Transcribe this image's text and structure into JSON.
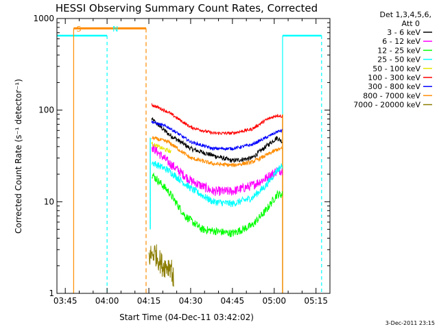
{
  "chart_data": {
    "type": "line",
    "title": "HESSI Observing Summary Count Rates, Corrected",
    "xlabel": "Start Time (04-Dec-11 03:42:02)",
    "ylabel": "Corrected Count Rate (s⁻¹ detector⁻¹)",
    "yscale": "log",
    "ylim": [
      1,
      1000
    ],
    "xlim_minutes": [
      222,
      320
    ],
    "xticks": [
      {
        "label": "03:45",
        "minute": 225
      },
      {
        "label": "04:00",
        "minute": 240
      },
      {
        "label": "04:15",
        "minute": 255
      },
      {
        "label": "04:30",
        "minute": 270
      },
      {
        "label": "04:45",
        "minute": 285
      },
      {
        "label": "05:00",
        "minute": 300
      },
      {
        "label": "05:15",
        "minute": 315
      }
    ],
    "yticks": [
      {
        "label": "1",
        "value": 1
      },
      {
        "label": "10",
        "value": 10
      },
      {
        "label": "100",
        "value": 100
      },
      {
        "label": "1000",
        "value": 1000
      }
    ],
    "legend": {
      "placement": "right",
      "header": [
        "Det 1,3,4,5,6,",
        "Att 0"
      ],
      "entries": [
        {
          "label": "3 - 6 keV",
          "color": "#000000"
        },
        {
          "label": "6 - 12 keV",
          "color": "#ff00ff"
        },
        {
          "label": "12 - 25 keV",
          "color": "#00ff00"
        },
        {
          "label": "25 - 50 keV",
          "color": "#00ffff"
        },
        {
          "label": "50 - 100 keV",
          "color": "#e6e600"
        },
        {
          "label": "100 - 300 keV",
          "color": "#ff0000"
        },
        {
          "label": "300 - 800 keV",
          "color": "#0000ff"
        },
        {
          "label": "800 - 7000 keV",
          "color": "#ff8c00"
        },
        {
          "label": "7000 - 20000 keV",
          "color": "#8b7d00"
        }
      ]
    },
    "series": [
      {
        "name": "3 - 6 keV",
        "color": "#000000",
        "noise": 0.06,
        "points": [
          [
            256,
            80
          ],
          [
            262,
            55
          ],
          [
            270,
            38
          ],
          [
            278,
            32
          ],
          [
            285,
            28
          ],
          [
            292,
            30
          ],
          [
            297,
            40
          ],
          [
            301,
            50
          ],
          [
            303,
            45
          ]
        ]
      },
      {
        "name": "6 - 12 keV",
        "color": "#ff00ff",
        "noise": 0.12,
        "points": [
          [
            256,
            40
          ],
          [
            262,
            27
          ],
          [
            270,
            17
          ],
          [
            278,
            13
          ],
          [
            285,
            13
          ],
          [
            292,
            15
          ],
          [
            297,
            18
          ],
          [
            301,
            22
          ],
          [
            303,
            22
          ]
        ]
      },
      {
        "name": "12 - 25 keV",
        "color": "#00ff00",
        "noise": 0.1,
        "points": [
          [
            256,
            20
          ],
          [
            262,
            13
          ],
          [
            268,
            7
          ],
          [
            274,
            5
          ],
          [
            285,
            4.5
          ],
          [
            292,
            5.5
          ],
          [
            297,
            8
          ],
          [
            301,
            12
          ],
          [
            303,
            12
          ]
        ]
      },
      {
        "name": "25 - 50 keV",
        "color": "#00ffff",
        "noise": 0.09,
        "points": [
          [
            256,
            27
          ],
          [
            262,
            22
          ],
          [
            270,
            14
          ],
          [
            278,
            10
          ],
          [
            285,
            9.5
          ],
          [
            292,
            11
          ],
          [
            297,
            15
          ],
          [
            301,
            22
          ],
          [
            303,
            25
          ]
        ]
      },
      {
        "name": "50 - 100 keV",
        "color": "#e6e600",
        "noise": 0.05,
        "points": [
          [
            256,
            43
          ],
          [
            260,
            38
          ],
          [
            263,
            35
          ]
        ]
      },
      {
        "name": "100 - 300 keV",
        "color": "#ff0000",
        "noise": 0.04,
        "points": [
          [
            256,
            115
          ],
          [
            262,
            95
          ],
          [
            270,
            65
          ],
          [
            278,
            56
          ],
          [
            285,
            56
          ],
          [
            292,
            62
          ],
          [
            297,
            78
          ],
          [
            301,
            88
          ],
          [
            303,
            85
          ]
        ]
      },
      {
        "name": "300 - 800 keV",
        "color": "#0000ff",
        "noise": 0.04,
        "points": [
          [
            256,
            75
          ],
          [
            262,
            65
          ],
          [
            270,
            45
          ],
          [
            278,
            38
          ],
          [
            285,
            38
          ],
          [
            292,
            42
          ],
          [
            297,
            50
          ],
          [
            301,
            58
          ],
          [
            303,
            60
          ]
        ]
      },
      {
        "name": "800 - 7000 keV",
        "color": "#ff8c00",
        "noise": 0.05,
        "points": [
          [
            256,
            50
          ],
          [
            262,
            45
          ],
          [
            270,
            30
          ],
          [
            278,
            26
          ],
          [
            285,
            25
          ],
          [
            292,
            27
          ],
          [
            297,
            32
          ],
          [
            301,
            37
          ],
          [
            303,
            38
          ]
        ]
      },
      {
        "name": "7000 - 20000 keV",
        "color": "#8b7d00",
        "noise": 0.3,
        "points": [
          [
            255,
            2.5
          ],
          [
            257,
            2.8
          ],
          [
            260,
            2
          ],
          [
            263,
            2
          ],
          [
            264,
            1.3
          ]
        ]
      }
    ],
    "annotations": [
      {
        "text": "S",
        "color": "#ff8c00",
        "minute": 228,
        "kind": "SAA interval"
      },
      {
        "text": "N",
        "color": "#00ffff",
        "minute": 241,
        "kind": "night interval"
      }
    ],
    "intervals": [
      {
        "kind": "night",
        "color": "#00ffff",
        "start": 222,
        "end": 240,
        "value": 650
      },
      {
        "kind": "saa",
        "color": "#ff8c00",
        "start": 228,
        "end": 254,
        "value": 780
      },
      {
        "kind": "night",
        "color": "#00ffff",
        "start": 303,
        "end": 317,
        "value": 650
      }
    ]
  },
  "footer": {
    "timestamp": "3-Dec-2011 23:15"
  }
}
